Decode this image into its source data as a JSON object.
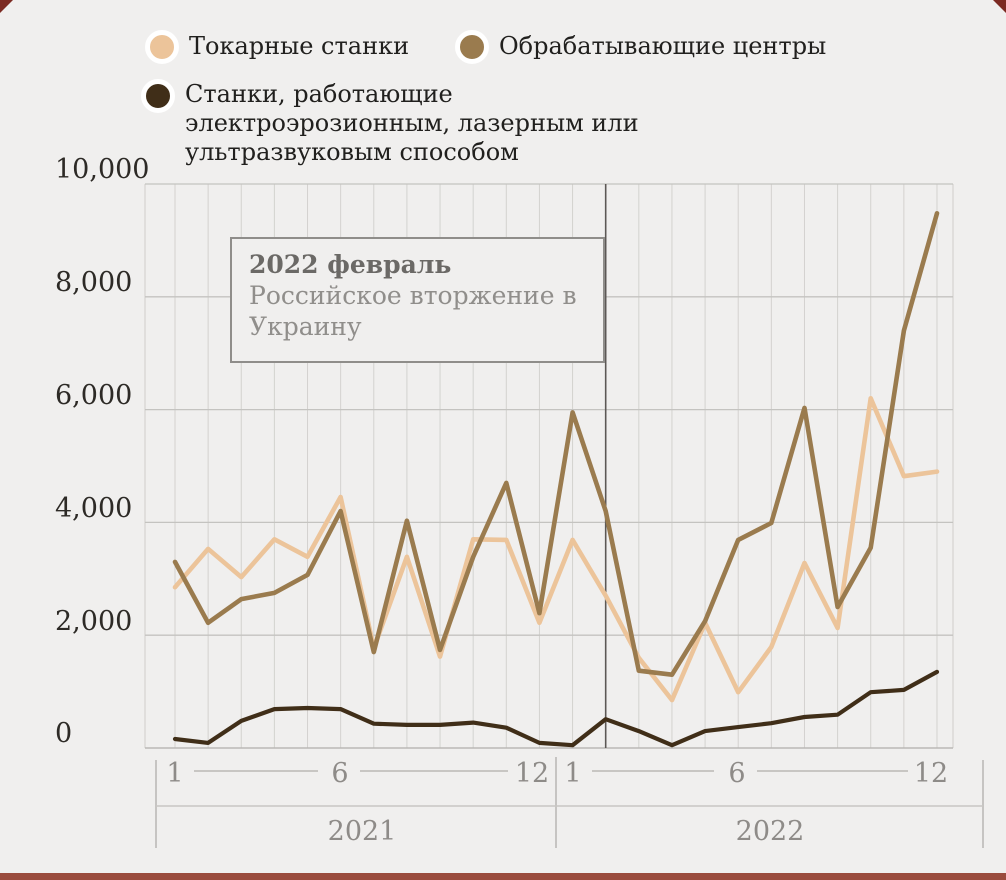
{
  "page": {
    "background_color": "#f0efee",
    "bottom_strip_color": "#9a4c3e",
    "corner_mark_color": "#7c2a22"
  },
  "legend": {
    "items": [
      {
        "label": "Токарные станки",
        "color": "#ecc49a"
      },
      {
        "label": "Обрабатывающие центры",
        "color": "#9a7b4e"
      },
      {
        "label": "Станки, работающие электроэрозионным, лазерным или ультразвуковым способом",
        "color": "#402e18"
      }
    ]
  },
  "annotation": {
    "title": "2022 февраль",
    "line1": "Российское вторжение в",
    "line2": "Украину"
  },
  "y_axis": {
    "labels": [
      "10,000",
      "8,000",
      "6,000",
      "4,000",
      "2,000",
      "0"
    ]
  },
  "x_axis": {
    "month_labels": [
      "1",
      "6",
      "12",
      "1",
      "6",
      "12"
    ],
    "year_labels": [
      "2021",
      "2022"
    ]
  },
  "chart_data": {
    "type": "line",
    "x": [
      "2021-01",
      "2021-02",
      "2021-03",
      "2021-04",
      "2021-05",
      "2021-06",
      "2021-07",
      "2021-08",
      "2021-09",
      "2021-10",
      "2021-11",
      "2021-12",
      "2022-01",
      "2022-02",
      "2022-03",
      "2022-04",
      "2022-05",
      "2022-06",
      "2022-07",
      "2022-08",
      "2022-09",
      "2022-10",
      "2022-11",
      "2022-12"
    ],
    "ylim": [
      0,
      10000
    ],
    "y_ticks": [
      0,
      2000,
      4000,
      6000,
      8000,
      10000
    ],
    "grid": "both",
    "legend_position": "top",
    "series": [
      {
        "name": "Токарные станки",
        "color": "#ecc49a",
        "values": [
          2850,
          3530,
          3030,
          3700,
          3390,
          4450,
          1770,
          3390,
          1620,
          3700,
          3690,
          2220,
          3690,
          2700,
          1600,
          850,
          2220,
          990,
          1790,
          3280,
          2130,
          6200,
          4820,
          4900
        ]
      },
      {
        "name": "Обрабатывающие центры",
        "color": "#9a7b4e",
        "values": [
          3300,
          2220,
          2640,
          2750,
          3070,
          4200,
          1700,
          4030,
          1740,
          3390,
          4700,
          2390,
          5950,
          4200,
          1370,
          1300,
          2250,
          3690,
          3990,
          6030,
          2500,
          3550,
          7400,
          9480
        ]
      },
      {
        "name": "Станки, работающие электроэрозионным, лазерным или ультразвуковым способом",
        "color": "#402e18",
        "values": [
          160,
          90,
          480,
          690,
          710,
          690,
          430,
          410,
          410,
          450,
          360,
          90,
          50,
          510,
          300,
          50,
          300,
          370,
          440,
          550,
          590,
          990,
          1030,
          1350
        ]
      }
    ],
    "event_marker": {
      "month": "2022-02",
      "month_index": 13,
      "label": "2022 февраль",
      "description": "Российское вторжение в Украину"
    }
  }
}
